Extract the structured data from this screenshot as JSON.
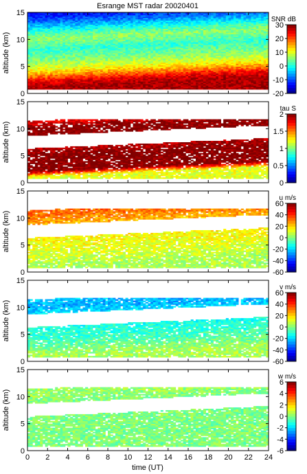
{
  "title": "Esrange MST radar 20020401",
  "chart_data": {
    "type": "heatmap",
    "title": "Esrange MST radar 20020401",
    "xlabel": "time (UT)",
    "xlim": [
      0,
      24
    ],
    "xticks": [
      0,
      2,
      4,
      6,
      8,
      10,
      12,
      14,
      16,
      18,
      20,
      22,
      24
    ],
    "panels": [
      {
        "id": "snr",
        "ylabel": "altitude (km)",
        "ylim": [
          0,
          15
        ],
        "yticks": [
          0,
          5,
          10,
          15
        ],
        "colorbar_label": "SNR dB",
        "clim": [
          -20,
          30
        ],
        "cticks": [
          -20,
          -10,
          0,
          10,
          20,
          30
        ],
        "profile": [
          {
            "alt": 1,
            "value": 28
          },
          {
            "alt": 2,
            "value": 25
          },
          {
            "alt": 3,
            "value": 18
          },
          {
            "alt": 4,
            "value": 12
          },
          {
            "alt": 5,
            "value": 8
          },
          {
            "alt": 6,
            "value": 5
          },
          {
            "alt": 7,
            "value": 3
          },
          {
            "alt": 8,
            "value": 1
          },
          {
            "alt": 9,
            "value": 4
          },
          {
            "alt": 10,
            "value": 6
          },
          {
            "alt": 11,
            "value": 2
          },
          {
            "alt": 12,
            "value": -3
          },
          {
            "alt": 13,
            "value": -8
          },
          {
            "alt": 14,
            "value": -12
          },
          {
            "alt": 15,
            "value": -14
          }
        ]
      },
      {
        "id": "tau",
        "ylabel": "altitude (km)",
        "ylim": [
          0,
          15
        ],
        "yticks": [
          0,
          5,
          10,
          15
        ],
        "colorbar_label": "tau S",
        "clim": [
          0,
          2
        ],
        "cticks": [
          0,
          0.5,
          1,
          1.5,
          2
        ],
        "profile": [
          {
            "alt": 1,
            "value": 1.2
          },
          {
            "alt": 2,
            "value": 2.0
          },
          {
            "alt": 3,
            "value": 2.0
          },
          {
            "alt": 4,
            "value": 2.0
          },
          {
            "alt": 5,
            "value": 2.0
          },
          {
            "alt": 6,
            "value": 1.9
          },
          {
            "alt": 9,
            "value": 2.0
          },
          {
            "alt": 10,
            "value": 2.0
          },
          {
            "alt": 11,
            "value": 1.8
          }
        ]
      },
      {
        "id": "u",
        "ylabel": "altitude (km)",
        "ylim": [
          0,
          15
        ],
        "yticks": [
          0,
          5,
          10,
          15
        ],
        "colorbar_label": "u m/s",
        "clim": [
          -60,
          60
        ],
        "cticks": [
          -60,
          -40,
          -20,
          0,
          20,
          40,
          60
        ],
        "profile": [
          {
            "alt": 1,
            "value": 5
          },
          {
            "alt": 2,
            "value": 8
          },
          {
            "alt": 3,
            "value": 10
          },
          {
            "alt": 4,
            "value": 12
          },
          {
            "alt": 5,
            "value": 14
          },
          {
            "alt": 6,
            "value": 15
          },
          {
            "alt": 9,
            "value": 25
          },
          {
            "alt": 10,
            "value": 30
          },
          {
            "alt": 11,
            "value": 33
          }
        ]
      },
      {
        "id": "v",
        "ylabel": "altitude (km)",
        "ylim": [
          0,
          15
        ],
        "yticks": [
          0,
          5,
          10,
          15
        ],
        "colorbar_label": "v m/s",
        "clim": [
          -60,
          60
        ],
        "cticks": [
          -60,
          -40,
          -20,
          0,
          20,
          40,
          60
        ],
        "profile": [
          {
            "alt": 1,
            "value": 5
          },
          {
            "alt": 2,
            "value": 0
          },
          {
            "alt": 3,
            "value": -5
          },
          {
            "alt": 4,
            "value": -8
          },
          {
            "alt": 5,
            "value": -10
          },
          {
            "alt": 6,
            "value": -12
          },
          {
            "alt": 9,
            "value": -20
          },
          {
            "alt": 10,
            "value": -25
          },
          {
            "alt": 11,
            "value": -22
          }
        ]
      },
      {
        "id": "w",
        "ylabel": "altitude (km)",
        "ylim": [
          0,
          15
        ],
        "yticks": [
          0,
          5,
          10,
          15
        ],
        "colorbar_label": "w m/s",
        "clim": [
          -6,
          6
        ],
        "cticks": [
          -6,
          -4,
          -2,
          0,
          2,
          4,
          6
        ],
        "profile": [
          {
            "alt": 1,
            "value": 0
          },
          {
            "alt": 2,
            "value": 0
          },
          {
            "alt": 3,
            "value": 0
          },
          {
            "alt": 4,
            "value": 0
          },
          {
            "alt": 5,
            "value": 0
          },
          {
            "alt": 6,
            "value": 0
          },
          {
            "alt": 9,
            "value": 0
          },
          {
            "alt": 10,
            "value": 0.3
          },
          {
            "alt": 11,
            "value": 0.3
          }
        ]
      }
    ]
  }
}
